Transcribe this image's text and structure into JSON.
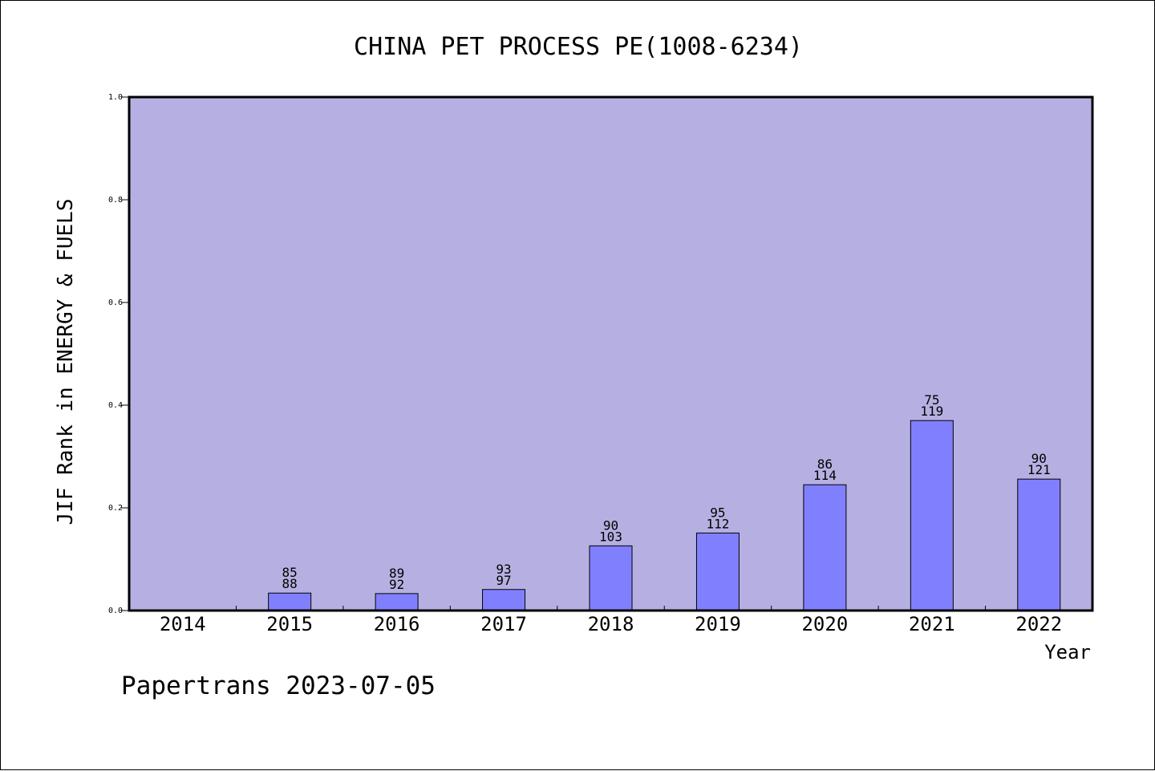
{
  "chart_data": {
    "type": "bar",
    "title": "CHINA PET PROCESS PE(1008-6234)",
    "ylabel": "JIF Rank in ENERGY & FUELS",
    "xlabel": "Year",
    "ylim": [
      0,
      1.0
    ],
    "yticks": [
      "0.0",
      "0.2",
      "0.4",
      "0.6",
      "0.8",
      "1.0"
    ],
    "categories": [
      "2014",
      "2015",
      "2016",
      "2017",
      "2018",
      "2019",
      "2020",
      "2021",
      "2022"
    ],
    "values": [
      null,
      0.034,
      0.033,
      0.041,
      0.126,
      0.151,
      0.245,
      0.37,
      0.256
    ],
    "rank_labels": [
      "",
      "85",
      "89",
      "93",
      "90",
      "95",
      "86",
      "75",
      "90"
    ],
    "total_labels": [
      "",
      "88",
      "92",
      "97",
      "103",
      "112",
      "114",
      "119",
      "121"
    ],
    "grid": false,
    "plot_background": "#b6b0e2",
    "bar_color": "#8080ff"
  },
  "footer": {
    "text": "Papertrans 2023-07-05"
  }
}
